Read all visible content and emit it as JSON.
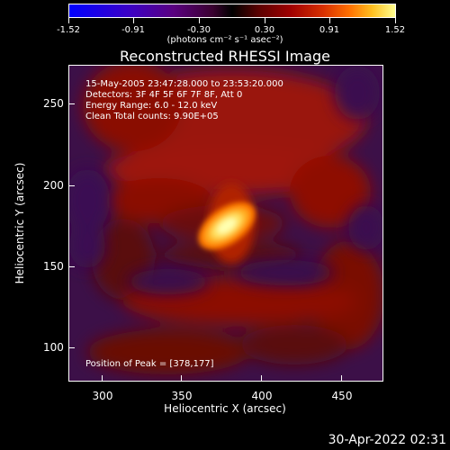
{
  "colorbar": {
    "tick_labels": [
      "-1.52",
      "-0.91",
      "-0.30",
      "0.30",
      "0.91",
      "1.52"
    ],
    "units_label": "(photons cm⁻² s⁻¹ asec⁻²)"
  },
  "plot": {
    "title": "Reconstructed RHESSI Image",
    "info_lines": [
      "15-May-2005 23:47:28.000 to 23:53:20.000",
      "Detectors: 3F 4F 5F 6F 7F 8F, Att 0",
      "Energy Range: 6.0 - 12.0 keV",
      "Clean    Total counts: 9.90E+05"
    ],
    "peak_text": "Position of Peak = [378,177]",
    "xlabel": "Heliocentric X (arcsec)",
    "ylabel": "Heliocentric Y (arcsec)",
    "x_ticks": [
      "300",
      "350",
      "400",
      "450"
    ],
    "y_ticks": [
      "100",
      "150",
      "200",
      "250"
    ]
  },
  "footer": {
    "datestamp": "30-Apr-2022 02:31"
  }
}
